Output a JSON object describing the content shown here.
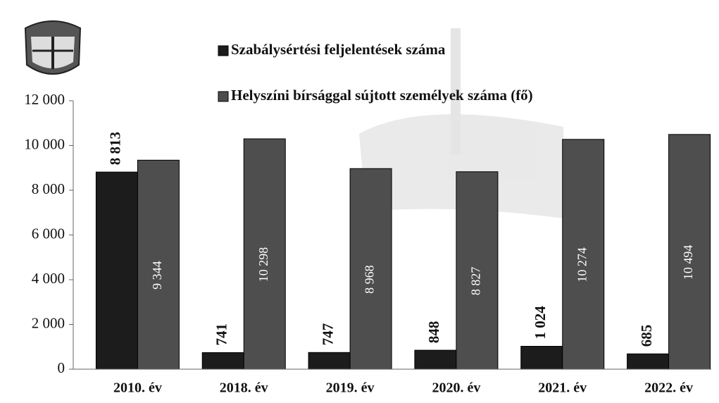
{
  "chart_data": {
    "type": "bar",
    "categories": [
      "2010. év",
      "2018. év",
      "2019. év",
      "2020. év",
      "2021. év",
      "2022. év"
    ],
    "series": [
      {
        "name": "Szabálysértési feljelentések száma",
        "color": "#1c1c1c",
        "values": [
          8813,
          741,
          747,
          848,
          1024,
          685
        ],
        "value_labels": [
          "8 813",
          "741",
          "747",
          "848",
          "1 024",
          "685"
        ]
      },
      {
        "name": "Helyszíni bírsággal sújtott személyek száma (fő)",
        "color": "#4e4e4e",
        "values": [
          9344,
          10298,
          8968,
          8827,
          10274,
          10494
        ],
        "value_labels": [
          "9 344",
          "10 298",
          "8 968",
          "8 827",
          "10 274",
          "10 494"
        ]
      }
    ],
    "ylim": [
      0,
      12000
    ],
    "yticks": [
      0,
      {
        "value": 2000,
        "label": "2 000"
      },
      {
        "value": 4000,
        "label": "4 000"
      },
      {
        "value": 6000,
        "label": "6 000"
      },
      {
        "value": 8000,
        "label": "8 000"
      },
      {
        "value": 10000,
        "label": "10 000"
      },
      {
        "value": 12000,
        "label": "12 000"
      }
    ],
    "legend": "top",
    "grid": false
  }
}
